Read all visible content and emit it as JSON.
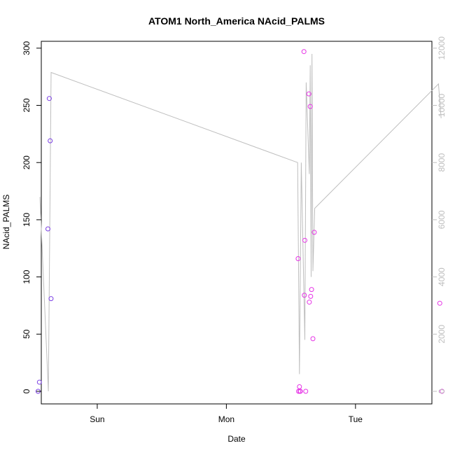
{
  "chart_data": {
    "type": "scatter",
    "title": "ATOM1 North_America NAcid_PALMS",
    "xlabel": "Date",
    "ylabel": "NAcid_PALMS",
    "x_ticks": [
      "Sun",
      "Mon",
      "Tue"
    ],
    "y_ticks": [
      0,
      50,
      100,
      150,
      200,
      250,
      300
    ],
    "y2_ticks": [
      0,
      2000,
      4000,
      6000,
      8000,
      10000,
      12000
    ],
    "ylim": [
      -11,
      306
    ],
    "y2lim": [
      -440,
      12240
    ],
    "grid": false,
    "legend": "none",
    "colors": {
      "axis": "#000000",
      "secondary_axis": "#bebebe",
      "line": "#bebebe",
      "points_early": "#7b3fe4",
      "points_late": "#e633e6"
    },
    "series": [
      {
        "type": "points",
        "y_axis": "left",
        "points": [
          {
            "x": "Sat 13:00",
            "y": 0,
            "color": "#7b3fe4"
          },
          {
            "x": "Sat 13:15",
            "y": 8,
            "color": "#7b3fe4"
          },
          {
            "x": "Sat 14:50",
            "y": 142,
            "color": "#7b3fe4"
          },
          {
            "x": "Sat 15:05",
            "y": 256,
            "color": "#7b3fe4"
          },
          {
            "x": "Sat 15:15",
            "y": 219,
            "color": "#7b3fe4"
          },
          {
            "x": "Sat 15:25",
            "y": 81,
            "color": "#7b3fe4"
          },
          {
            "x": "Mon 13:20",
            "y": 116,
            "color": "#e633e6"
          },
          {
            "x": "Mon 13:25",
            "y": 0,
            "color": "#e633e6"
          },
          {
            "x": "Mon 13:35",
            "y": 4,
            "color": "#e633e6"
          },
          {
            "x": "Mon 13:40",
            "y": 0,
            "color": "#e633e6"
          },
          {
            "x": "Mon 13:45",
            "y": 0,
            "color": "#e633e6"
          },
          {
            "x": "Mon 14:25",
            "y": 297,
            "color": "#e633e6"
          },
          {
            "x": "Mon 14:30",
            "y": 84,
            "color": "#e633e6"
          },
          {
            "x": "Mon 14:35",
            "y": 132,
            "color": "#e633e6"
          },
          {
            "x": "Mon 14:45",
            "y": 0,
            "color": "#e633e6"
          },
          {
            "x": "Mon 15:20",
            "y": 260,
            "color": "#e633e6"
          },
          {
            "x": "Mon 15:25",
            "y": 78,
            "color": "#e633e6"
          },
          {
            "x": "Mon 15:35",
            "y": 249,
            "color": "#e633e6"
          },
          {
            "x": "Mon 15:40",
            "y": 83,
            "color": "#e633e6"
          },
          {
            "x": "Mon 15:50",
            "y": 89,
            "color": "#e633e6"
          },
          {
            "x": "Mon 16:05",
            "y": 46,
            "color": "#e633e6"
          },
          {
            "x": "Mon 16:20",
            "y": 139,
            "color": "#e633e6"
          },
          {
            "x": "Tue 15:40",
            "y": 77,
            "color": "#e633e6"
          },
          {
            "x": "Tue 16:05",
            "y": 0,
            "color": "#e633e6"
          }
        ]
      },
      {
        "type": "line",
        "y_axis": "right",
        "points": [
          {
            "x": "Sat 13:20",
            "y": 6800
          },
          {
            "x": "Sat 14:55",
            "y": 0
          },
          {
            "x": "Sat 15:25",
            "y": 11150
          },
          {
            "x": "Mon 13:15",
            "y": 8000
          },
          {
            "x": "Mon 13:35",
            "y": 600
          },
          {
            "x": "Mon 13:55",
            "y": 8000
          },
          {
            "x": "Mon 14:35",
            "y": 1800
          },
          {
            "x": "Mon 14:50",
            "y": 10800
          },
          {
            "x": "Mon 15:25",
            "y": 7600
          },
          {
            "x": "Mon 15:35",
            "y": 11400
          },
          {
            "x": "Mon 15:45",
            "y": 4000
          },
          {
            "x": "Mon 15:55",
            "y": 11800
          },
          {
            "x": "Mon 16:05",
            "y": 4200
          },
          {
            "x": "Mon 16:25",
            "y": 6400
          },
          {
            "x": "Tue 15:25",
            "y": 10750
          },
          {
            "x": "Tue 15:55",
            "y": 9550
          }
        ]
      }
    ]
  }
}
